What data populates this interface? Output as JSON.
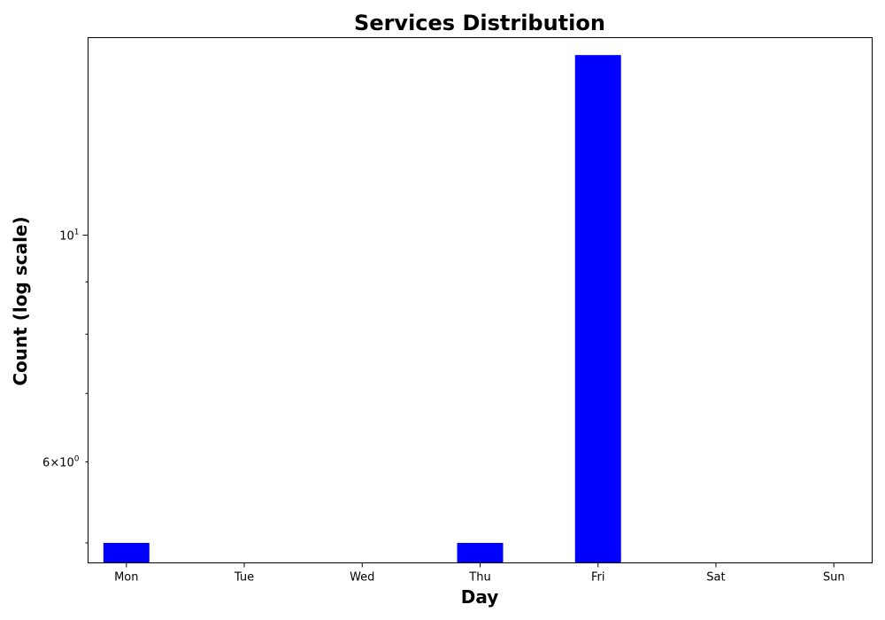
{
  "chart_data": {
    "type": "bar",
    "title": "Services Distribution",
    "xlabel": "Day",
    "ylabel": "Count (log scale)",
    "yscale": "log",
    "ylim": [
      4.78,
      15.6
    ],
    "categories": [
      "Mon",
      "Tue",
      "Wed",
      "Thu",
      "Fri",
      "Sat",
      "Sun"
    ],
    "values": [
      5,
      0,
      0,
      5,
      15,
      0,
      0
    ],
    "grid": false,
    "bar_color": "#0000ff",
    "y_major_ticks": [
      {
        "value": 10,
        "base": "10",
        "exp": "1"
      }
    ],
    "y_minor_ticks": [
      {
        "value": 6,
        "mant": "6",
        "base": "10",
        "exp": "0",
        "labeled": true
      },
      {
        "value": 5,
        "labeled": false
      },
      {
        "value": 7,
        "labeled": false
      },
      {
        "value": 8,
        "labeled": false
      },
      {
        "value": 9,
        "labeled": false
      }
    ]
  }
}
